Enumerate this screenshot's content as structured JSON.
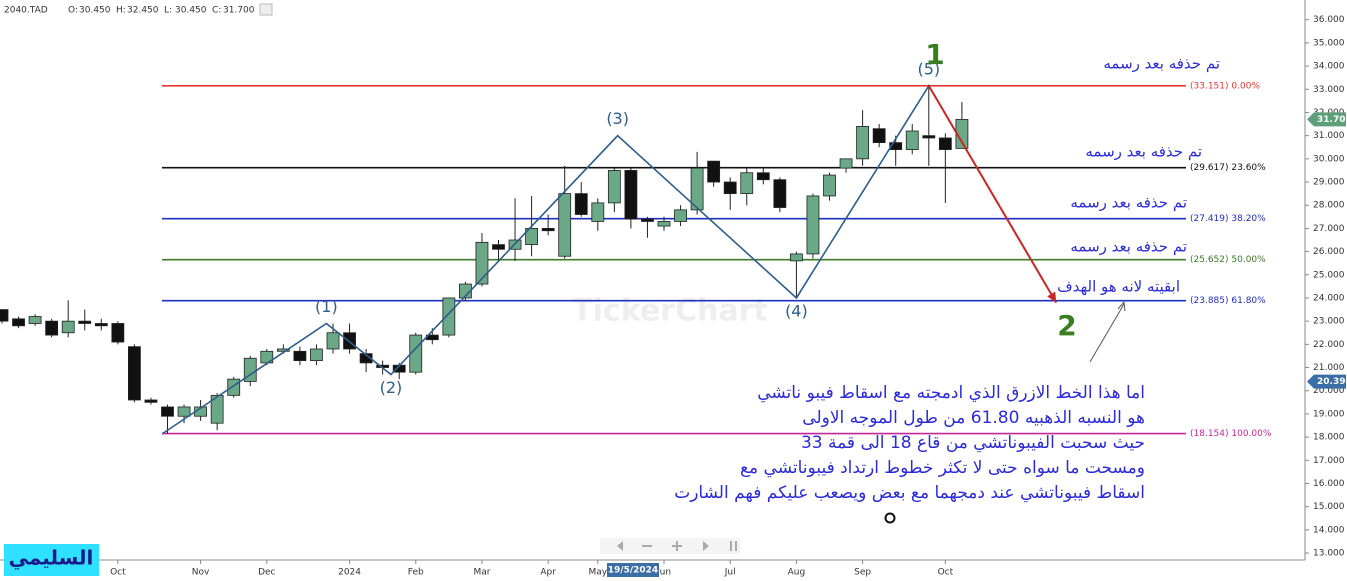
{
  "header": {
    "symbol": "2040.TAD",
    "items": [
      {
        "label": "O:",
        "text": "30.450"
      },
      {
        "label": "H:",
        "text": "32.450"
      },
      {
        "label": "L:",
        "text": "30.450"
      },
      {
        "label": "C:",
        "text": "31.700"
      }
    ]
  },
  "chart_data": {
    "type": "candlestick",
    "categories": [
      null,
      null,
      null,
      null,
      null,
      null,
      null,
      "Oct",
      null,
      null,
      null,
      null,
      "Nov",
      null,
      null,
      null,
      "Dec",
      null,
      null,
      null,
      null,
      "2024",
      null,
      null,
      null,
      "Feb",
      null,
      null,
      null,
      "Mar",
      null,
      null,
      null,
      "Apr",
      null,
      null,
      "May",
      null,
      null,
      null,
      "Jun",
      null,
      null,
      null,
      "Jul",
      null,
      null,
      null,
      "Aug",
      null,
      null,
      null,
      "Sep",
      null,
      null,
      null,
      null,
      "Oct",
      null
    ],
    "open": [
      23.5,
      23.1,
      22.9,
      23.0,
      22.5,
      23.0,
      22.9,
      22.9,
      21.9,
      19.6,
      19.3,
      18.9,
      18.9,
      18.6,
      19.8,
      20.4,
      21.2,
      21.7,
      21.7,
      21.3,
      21.8,
      22.5,
      21.6,
      21.1,
      21.1,
      20.8,
      22.4,
      22.4,
      24.0,
      24.6,
      26.3,
      26.1,
      26.3,
      27.0,
      25.8,
      28.5,
      27.3,
      28.1,
      29.5,
      27.4,
      27.1,
      27.3,
      27.8,
      29.9,
      29.0,
      28.5,
      29.4,
      29.1,
      25.6,
      25.9,
      28.4,
      29.6,
      30.0,
      31.3,
      30.7,
      30.4,
      31.0,
      30.9,
      30.45
    ],
    "high": [
      23.5,
      23.2,
      23.3,
      23.1,
      23.9,
      23.5,
      23.1,
      23.0,
      22.0,
      19.7,
      19.4,
      19.4,
      19.6,
      19.9,
      20.6,
      21.5,
      21.8,
      22.0,
      21.9,
      22.0,
      22.9,
      22.9,
      21.8,
      21.3,
      21.2,
      22.5,
      22.7,
      24.0,
      24.7,
      26.8,
      26.5,
      28.3,
      28.4,
      27.6,
      29.7,
      29.0,
      28.3,
      29.6,
      29.6,
      27.5,
      27.5,
      28.0,
      30.3,
      29.9,
      29.2,
      29.6,
      29.6,
      29.2,
      26.0,
      28.5,
      29.4,
      30.0,
      32.1,
      31.5,
      31.0,
      31.5,
      33.2,
      31.1,
      32.45
    ],
    "low": [
      22.9,
      22.7,
      22.8,
      22.3,
      22.3,
      22.6,
      22.6,
      22.0,
      19.5,
      19.4,
      18.15,
      18.6,
      18.7,
      18.3,
      19.7,
      20.2,
      21.1,
      21.6,
      21.1,
      21.1,
      21.6,
      21.6,
      20.8,
      20.7,
      20.5,
      20.7,
      22.0,
      22.3,
      23.9,
      24.5,
      25.6,
      25.6,
      25.8,
      26.7,
      25.7,
      27.5,
      26.9,
      27.7,
      27.0,
      26.6,
      26.9,
      27.1,
      27.6,
      28.8,
      27.8,
      28.0,
      28.9,
      27.7,
      24.0,
      25.7,
      28.2,
      29.4,
      29.7,
      30.5,
      29.7,
      30.2,
      29.7,
      28.1,
      30.45
    ],
    "close": [
      23.0,
      22.8,
      23.2,
      22.4,
      23.0,
      22.9,
      22.8,
      22.1,
      19.6,
      19.5,
      18.9,
      19.3,
      19.3,
      19.8,
      20.5,
      21.4,
      21.7,
      21.8,
      21.3,
      21.8,
      22.5,
      21.8,
      21.2,
      21.0,
      20.8,
      22.4,
      22.2,
      24.0,
      24.6,
      26.4,
      26.1,
      26.5,
      27.0,
      26.9,
      28.5,
      27.6,
      28.1,
      29.5,
      27.4,
      27.3,
      27.3,
      27.8,
      29.6,
      29.0,
      28.5,
      29.4,
      29.1,
      27.9,
      25.9,
      28.4,
      29.3,
      30.0,
      31.4,
      30.7,
      30.4,
      31.2,
      30.9,
      30.4,
      31.7
    ],
    "ylim": [
      12.7,
      36.85
    ],
    "yticks": [
      {
        "value": 13,
        "label": "13.000"
      },
      {
        "value": 14,
        "label": "14.000"
      },
      {
        "value": 15,
        "label": "15.000"
      },
      {
        "value": 16,
        "label": "16.000"
      },
      {
        "value": 17,
        "label": "17.000"
      },
      {
        "value": 18,
        "label": "18.000"
      },
      {
        "value": 19,
        "label": "19.000"
      },
      {
        "value": 20,
        "label": "20.000"
      },
      {
        "value": 21,
        "label": "21.000"
      },
      {
        "value": 22,
        "label": "22.000"
      },
      {
        "value": 23,
        "label": "23.000"
      },
      {
        "value": 24,
        "label": "24.000"
      },
      {
        "value": 25,
        "label": "25.000"
      },
      {
        "value": 26,
        "label": "26.000"
      },
      {
        "value": 27,
        "label": "27.000"
      },
      {
        "value": 28,
        "label": "28.000"
      },
      {
        "value": 29,
        "label": "29.000"
      },
      {
        "value": 30,
        "label": "30.000"
      },
      {
        "value": 31,
        "label": "31.000"
      },
      {
        "value": 32,
        "label": "32.000"
      },
      {
        "value": 33,
        "label": "33.000"
      },
      {
        "value": 34,
        "label": "34.000"
      },
      {
        "value": 35,
        "label": "35.000"
      },
      {
        "value": 36,
        "label": "36.000"
      }
    ],
    "up_color": "#6aa888",
    "down_color": "#111111",
    "fib_levels": [
      {
        "value": 33.151,
        "label": "(33.151) 0.00%",
        "color": "#e53935"
      },
      {
        "value": 29.617,
        "label": "(29.617) 23.60%",
        "color": "#111111"
      },
      {
        "value": 27.419,
        "label": "(27.419) 38.20%",
        "color": "#1f2fbf"
      },
      {
        "value": 25.652,
        "label": "(25.652) 50.00%",
        "color": "#3d7a2a"
      },
      {
        "value": 23.885,
        "label": "(23.885) 61.80%",
        "color": "#1f2fbf"
      },
      {
        "value": 18.154,
        "label": "(18.154) 100.00%",
        "color": "#c2289a"
      }
    ],
    "wave": {
      "x": [
        9.7,
        19.6,
        23.5,
        37.2,
        48,
        56
      ],
      "values": [
        18.15,
        22.9,
        20.7,
        31.0,
        24.0,
        33.15
      ],
      "labels": [
        null,
        "(1)",
        "(2)",
        "(3)",
        "(4)",
        "(5)"
      ],
      "color": "#2f5d8a"
    },
    "projection": {
      "x": [
        56,
        63.7
      ],
      "values": [
        33.15,
        23.8
      ],
      "color": "#c62828"
    },
    "last_price": {
      "value": 31.7,
      "label": "31.700",
      "color": "#5f9e7a"
    },
    "crosshair": {
      "value": 20.395,
      "label": "20.395",
      "date": "19/5/2024",
      "color": "#3a6ea5"
    },
    "watermark": "TickerChart"
  },
  "annotations": [
    "تم حذفه بعد رسمه",
    "تم حذفه بعد رسمه",
    "تم حذفه بعد رسمه",
    "تم حذفه بعد رسمه",
    "ابقيته لانه هو الهدف"
  ],
  "wave_marks": [
    "1",
    "2"
  ],
  "paragraph": [
    "اما هذا الخط الازرق الذي ادمجته مع اسقاط فيبو ناتشي",
    "هو النسبه الذهبيه 61.80 من طول الموجه الاولى",
    "حيث سحبت الفيبوناتشي من قاع 18 الى قمة 33",
    "ومسحت ما سواه حتى لا تكثر خطوط ارتداد فيبوناتشي مع",
    "اسقاط فيبوناتشي  عند دمجهما مع بعض ويصعب عليكم فهم الشارت"
  ],
  "author": "السليمي"
}
